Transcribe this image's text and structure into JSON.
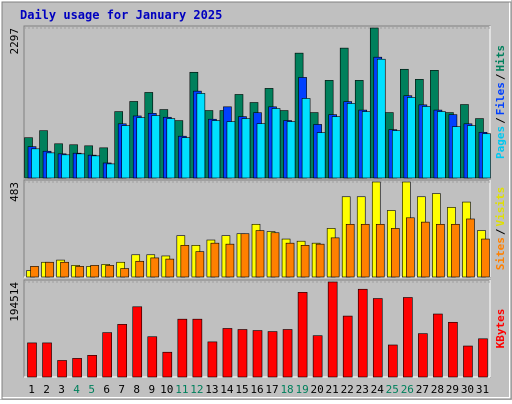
{
  "title": "Daily usage for January 2025",
  "separator": "/",
  "chart_data": [
    {
      "type": "bar",
      "ylim": [
        0,
        2297
      ],
      "yticks": [
        2297
      ],
      "series": [
        {
          "name": "Hits",
          "color": "#00805c",
          "label_color": "#00805c",
          "values": [
            617,
            725,
            524,
            509,
            493,
            462,
            1017,
            1172,
            1310,
            1048,
            879,
            1619,
            1033,
            1033,
            1279,
            1156,
            1372,
            1033,
            1912,
            1002,
            1495,
            1989,
            1495,
            2297,
            1002,
            1665,
            1511,
            1649,
            1002,
            1125,
            910
          ]
        },
        {
          "name": "Files",
          "color": "#0040ff",
          "label_color": "#0040ff",
          "values": [
            480,
            410,
            370,
            380,
            350,
            230,
            830,
            950,
            990,
            930,
            640,
            1330,
            900,
            1090,
            940,
            1000,
            1090,
            880,
            1540,
            820,
            970,
            1170,
            1040,
            1850,
            740,
            1260,
            1120,
            1040,
            970,
            830,
            700
          ]
        },
        {
          "name": "Pages",
          "color": "#00e0ff",
          "label_color": "#00c8f0",
          "values": [
            447,
            385,
            355,
            370,
            339,
            216,
            802,
            925,
            956,
            910,
            617,
            1295,
            879,
            863,
            910,
            832,
            1064,
            863,
            1218,
            694,
            940,
            1141,
            1017,
            1819,
            725,
            1233,
            1095,
            1017,
            786,
            802,
            678
          ]
        }
      ]
    },
    {
      "type": "bar",
      "ylim": [
        0,
        483
      ],
      "yticks": [
        483
      ],
      "series": [
        {
          "name": "Visits",
          "color": "#ffff00",
          "label_color": "#e0e000",
          "values": [
            32,
            75,
            86,
            59,
            54,
            64,
            75,
            113,
            113,
            107,
            210,
            161,
            188,
            210,
            220,
            268,
            231,
            193,
            182,
            172,
            247,
            408,
            408,
            483,
            338,
            483,
            408,
            424,
            354,
            381,
            236
          ]
        },
        {
          "name": "Sites",
          "color": "#ff8000",
          "label_color": "#ff8000",
          "values": [
            54,
            75,
            75,
            54,
            59,
            59,
            43,
            80,
            97,
            91,
            161,
            129,
            172,
            167,
            220,
            236,
            225,
            172,
            161,
            167,
            199,
            268,
            268,
            268,
            247,
            301,
            279,
            268,
            268,
            295,
            193
          ]
        }
      ]
    },
    {
      "type": "bar",
      "ylim": [
        0,
        194514
      ],
      "yticks": [
        194514
      ],
      "categories": [
        "1",
        "2",
        "3",
        "4",
        "5",
        "6",
        "7",
        "8",
        "9",
        "10",
        "11",
        "12",
        "13",
        "14",
        "15",
        "16",
        "17",
        "18",
        "19",
        "20",
        "21",
        "22",
        "23",
        "24",
        "25",
        "26",
        "27",
        "28",
        "29",
        "30",
        "31"
      ],
      "category_colors": [
        "#000000",
        "#000000",
        "#000000",
        "#00805c",
        "#00805c",
        "#000000",
        "#000000",
        "#000000",
        "#000000",
        "#000000",
        "#00805c",
        "#00805c",
        "#000000",
        "#000000",
        "#000000",
        "#000000",
        "#000000",
        "#00805c",
        "#00805c",
        "#000000",
        "#000000",
        "#000000",
        "#000000",
        "#000000",
        "#00805c",
        "#00805c",
        "#000000",
        "#000000",
        "#000000",
        "#000000",
        "#000000"
      ],
      "series": [
        {
          "name": "KBytes",
          "color": "#ff0000",
          "label_color": "#ff0000",
          "values": [
            69770,
            69770,
            33826,
            38053,
            44396,
            90904,
            107816,
            143754,
            82448,
            50738,
            118386,
            118386,
            71878,
            99360,
            97246,
            95132,
            93018,
            97246,
            173350,
            84562,
            194514,
            124730,
            179692,
            160666,
            65536,
            162780,
            88790,
            128958,
            112046,
            63424,
            78220
          ]
        }
      ]
    }
  ]
}
